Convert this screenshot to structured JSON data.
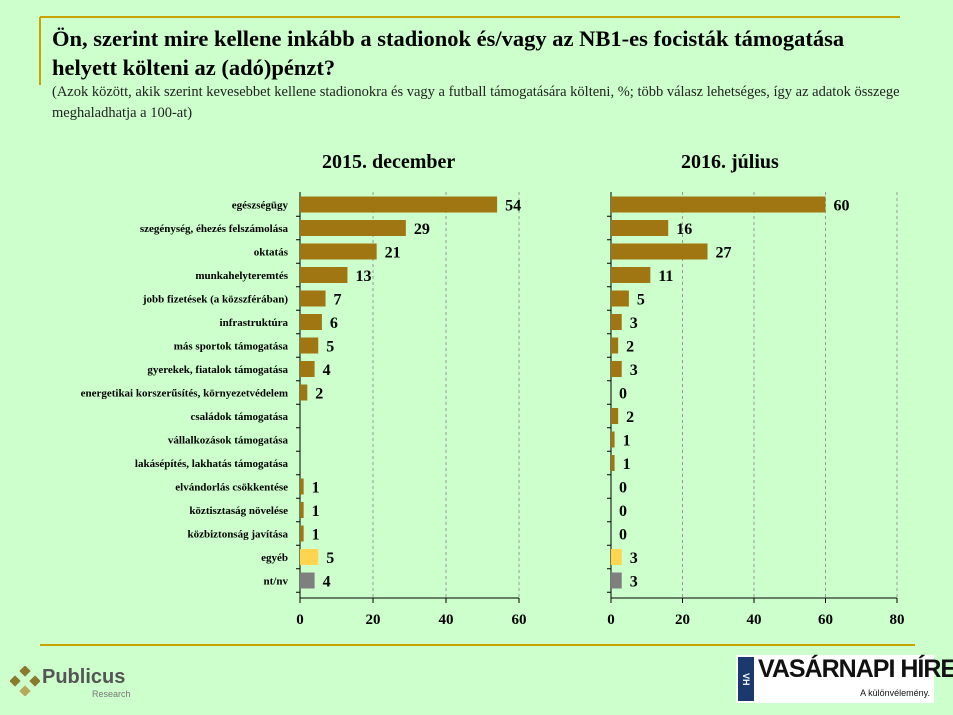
{
  "header": {
    "title": "Ön, szerint mire kellene inkább a stadionok és/vagy az NB1-es focisták támogatása helyett költeni az (adó)pénzt?",
    "subtitle": "(Azok között, akik szerint kevesebbet kellene stadionokra és vagy a futball támogatására költeni, %; több válasz lehetséges, így az adatok összege meghaladhatja a 100-at)"
  },
  "colors": {
    "main_bar": "#a07612",
    "other_bar": "#ffd54f",
    "nt_bar": "#7f7f7f",
    "rule": "#c9a300",
    "grid": "#999999"
  },
  "chart_data": [
    {
      "type": "bar",
      "orientation": "horizontal",
      "title": "2015. december",
      "categories": [
        "egészségügy",
        "szegénység, éhezés felszámolása",
        "oktatás",
        "munkahelyteremtés",
        "jobb fizetések (a közszférában)",
        "infrastruktúra",
        "más sportok támogatása",
        "gyerekek, fiatalok támogatása",
        "energetikai korszerűsítés, környezetvédelem",
        "családok támogatása",
        "vállalkozások támogatása",
        "lakásépítés, lakhatás támogatása",
        "elvándorlás csökkentése",
        "köztisztaság növelése",
        "közbiztonság javítása",
        "egyéb",
        "nt/nv"
      ],
      "values": [
        54,
        29,
        21,
        13,
        7,
        6,
        5,
        4,
        2,
        null,
        null,
        null,
        1,
        1,
        1,
        5,
        4
      ],
      "data_labels": [
        "54",
        "29",
        "21",
        "13",
        "7",
        "6",
        "5",
        "4",
        "2",
        "",
        "",
        "",
        "1",
        "1",
        "1",
        "5",
        "4"
      ],
      "xlim": [
        0,
        60
      ],
      "xticks": [
        "0",
        "20",
        "40",
        "60"
      ],
      "grid": true
    },
    {
      "type": "bar",
      "orientation": "horizontal",
      "title": "2016. július",
      "categories": [
        "egészségügy",
        "szegénység, éhezés felszámolása",
        "oktatás",
        "munkahelyteremtés",
        "jobb fizetések (a közszférában)",
        "infrastruktúra",
        "más sportok támogatása",
        "gyerekek, fiatalok támogatása",
        "energetikai korszerűsítés, környezetvédelem",
        "családok támogatása",
        "vállalkozások támogatása",
        "lakásépítés, lakhatás támogatása",
        "elvándorlás csökkentése",
        "köztisztaság növelése",
        "közbiztonság javítása",
        "egyéb",
        "nt/nv"
      ],
      "values": [
        60,
        16,
        27,
        11,
        5,
        3,
        2,
        3,
        0,
        2,
        1,
        1,
        0,
        0,
        0,
        3,
        3
      ],
      "data_labels": [
        "60",
        "16",
        "27",
        "11",
        "5",
        "3",
        "2",
        "3",
        "0",
        "2",
        "1",
        "1",
        "0",
        "0",
        "0",
        "3",
        "3"
      ],
      "xlim": [
        0,
        80
      ],
      "xticks": [
        "0",
        "20",
        "40",
        "60",
        "80"
      ],
      "grid": true
    }
  ],
  "footer": {
    "publicus_name": "Publicus",
    "publicus_sub": "Research",
    "vh_name": "VASÁRNAPI HÍREK",
    "vh_tagline": "A különvélemény.",
    "vh_badge": "VH"
  }
}
